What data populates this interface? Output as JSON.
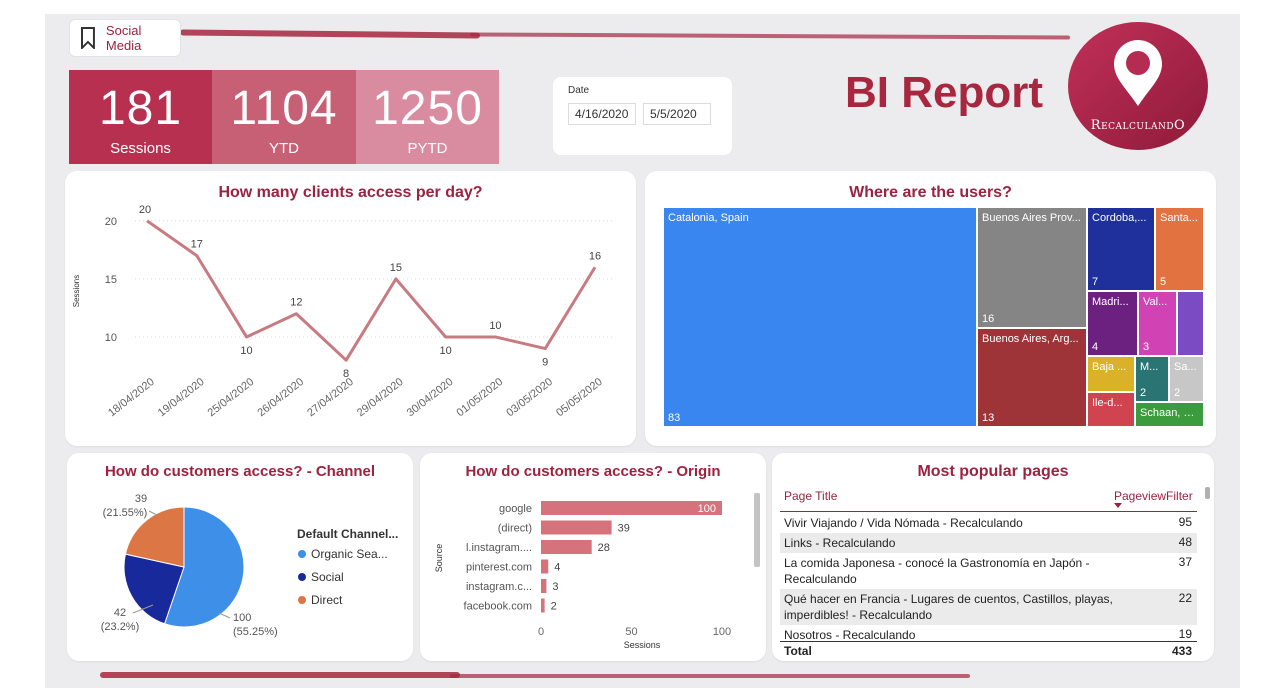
{
  "colors": {
    "accent": "#a8273f",
    "kpi1": "#b8304f",
    "kpi2": "#c75f75",
    "kpi3": "#d98ba0",
    "line": "#c97a80",
    "bar": "#d6727b"
  },
  "nav": {
    "label": "Social Media",
    "icon": "bookmark-icon"
  },
  "kpis": [
    {
      "value": "181",
      "label": "Sessions"
    },
    {
      "value": "1104",
      "label": "YTD"
    },
    {
      "value": "1250",
      "label": "PYTD"
    }
  ],
  "date_filter": {
    "label": "Date",
    "start": "4/16/2020",
    "end": "5/5/2020"
  },
  "report_title": "BI Report",
  "logo_text": "RecalculandO",
  "line_card": {
    "title": "How many clients access per day?"
  },
  "treemap_card": {
    "title": "Where are the users?"
  },
  "pie_card": {
    "title": "How do customers access? - Channel",
    "legend_title": "Default Channel..."
  },
  "bar_card": {
    "title": "How do customers access? - Origin"
  },
  "table_card": {
    "title": "Most popular pages",
    "col_title": "Page Title",
    "col_value": "PageviewFilter",
    "rows": [
      {
        "title": "Vivir Viajando / Vida Nómada - Recalculando",
        "value": "95"
      },
      {
        "title": "Links - Recalculando",
        "value": "48"
      },
      {
        "title": "La comida Japonesa - conocé la Gastronomía en Japón - Recalculando",
        "value": "37"
      },
      {
        "title": "Qué hacer en Francia - Lugares de cuentos, Castillos, playas, imperdibles! - Recalculando",
        "value": "22"
      },
      {
        "title": "Nosotros - Recalculando",
        "value": "19"
      }
    ],
    "total_label": "Total",
    "total_value": "433"
  },
  "chart_data": [
    {
      "type": "line",
      "title": "How many clients access per day?",
      "ylabel": "Sessions",
      "xlabel": "",
      "categories": [
        "18/04/2020",
        "19/04/2020",
        "25/04/2020",
        "26/04/2020",
        "27/04/2020",
        "29/04/2020",
        "30/04/2020",
        "01/05/2020",
        "03/05/2020",
        "05/05/2020"
      ],
      "values": [
        20,
        17,
        10,
        12,
        8,
        15,
        10,
        10,
        9,
        16
      ],
      "yticks": [
        10,
        15,
        20
      ],
      "ylim": [
        7.5,
        20.5
      ],
      "grid": true
    },
    {
      "type": "treemap",
      "title": "Where are the users?",
      "items": [
        {
          "name": "Catalonia, Spain",
          "value": 83,
          "color": "#3a86f0"
        },
        {
          "name": "Buenos Aires Prov...",
          "value": 16,
          "color": "#858585"
        },
        {
          "name": "Buenos Aires, Arg...",
          "value": 13,
          "color": "#9e3438"
        },
        {
          "name": "Cordoba,...",
          "value": 7,
          "color": "#1f2f9b"
        },
        {
          "name": "Santa...",
          "value": 5,
          "color": "#e2723f"
        },
        {
          "name": "Madri...",
          "value": 4,
          "color": "#6c2080"
        },
        {
          "name": "Val...",
          "value": 3,
          "color": "#d142b4"
        },
        {
          "name": "",
          "value": "",
          "color": "#7a4bc3"
        },
        {
          "name": "Baja ...",
          "value": "",
          "color": "#dcb12a"
        },
        {
          "name": "M...",
          "value": 2,
          "color": "#2b7474"
        },
        {
          "name": "Sa...",
          "value": 2,
          "color": "#c7c7c7"
        },
        {
          "name": "Ile-d...",
          "value": "",
          "color": "#d0444f"
        },
        {
          "name": "Schaan, Li...",
          "value": "",
          "color": "#3c9b3c"
        }
      ]
    },
    {
      "type": "pie",
      "title": "How do customers access? - Channel",
      "legend_title": "Default Channel...",
      "slices": [
        {
          "name": "Organic Sea...",
          "value": 100,
          "label": "100",
          "pct": "(55.25%)",
          "color": "#3d8fe8"
        },
        {
          "name": "Social",
          "value": 42,
          "label": "42",
          "pct": "(23.2%)",
          "color": "#17299b"
        },
        {
          "name": "Direct",
          "value": 39,
          "label": "39",
          "pct": "(21.55%)",
          "color": "#dc7645"
        }
      ]
    },
    {
      "type": "bar",
      "orientation": "horizontal",
      "title": "How do customers access? - Origin",
      "categories": [
        "google",
        "(direct)",
        "l.instagram....",
        "pinterest.com",
        "instagram.c...",
        "facebook.com"
      ],
      "values": [
        100,
        39,
        28,
        4,
        3,
        2
      ],
      "xlabel": "Sessions",
      "ylabel": "Source",
      "xticks": [
        0,
        50,
        100
      ],
      "xlim": [
        0,
        100
      ]
    }
  ]
}
